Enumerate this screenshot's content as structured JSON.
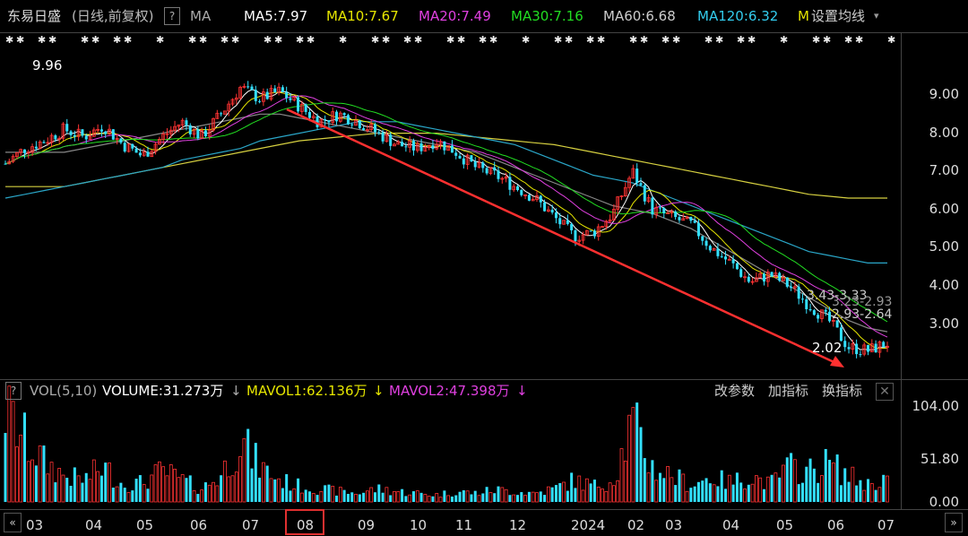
{
  "header": {
    "stock_name": "东易日盛",
    "period": "(日线,前复权)",
    "help_icon": "?",
    "ma_label": "MA",
    "ma_values": [
      {
        "label": "MA5:7.97",
        "color": "#ffffff"
      },
      {
        "label": "MA10:7.67",
        "color": "#e6e600"
      },
      {
        "label": "MA20:7.49",
        "color": "#e040e0"
      },
      {
        "label": "MA30:7.16",
        "color": "#22dd22"
      },
      {
        "label": "MA60:6.68",
        "color": "#cccccc"
      },
      {
        "label": "MA120:6.32",
        "color": "#33ccee"
      },
      {
        "label": "M",
        "color": "#e6e600"
      }
    ],
    "settings_label": "设置均线"
  },
  "volume_panel": {
    "help_icon": "?",
    "title": "VOL(5,10)",
    "volume": "VOLUME:31.273万",
    "mavol1": "MAVOL1:62.136万",
    "mavol2": "MAVOL2:47.398万",
    "buttons": [
      "改参数",
      "加指标",
      "换指标"
    ]
  },
  "colors": {
    "up": "#ff3333",
    "down": "#33e0ff",
    "trend_arrow": "#ff3030",
    "bg": "#000000"
  },
  "chart_data": {
    "type": "candlestick",
    "price_axis": {
      "ticks": [
        9.0,
        8.0,
        7.0,
        6.0,
        5.0,
        4.0,
        3.0
      ],
      "labels": [
        "9.00",
        "8.00",
        "7.00",
        "6.00",
        "5.00",
        "4.00",
        "3.00"
      ]
    },
    "annotations": {
      "high": "9.96",
      "low": "2.02",
      "range1": "3.43-3.33",
      "range2": "3.23-2.93",
      "range3": "2.93-2.64"
    },
    "volume_axis": {
      "labels": [
        "104.00",
        "51.80",
        "0.00"
      ]
    },
    "months": [
      "03",
      "04",
      "05",
      "06",
      "07",
      "08",
      "09",
      "10",
      "11",
      "12",
      "2024",
      "02",
      "03",
      "04",
      "05",
      "06",
      "07"
    ],
    "highlighted_month": "08",
    "series": {
      "close": [
        7.2,
        7.6,
        7.8,
        8.1,
        7.9,
        8.2,
        7.7,
        7.4,
        7.9,
        8.3,
        7.9,
        8.5,
        9.2,
        8.9,
        9.1,
        8.7,
        8.3,
        8.5,
        8.3,
        8.0,
        7.7,
        7.6,
        7.8,
        7.5,
        7.1,
        6.9,
        6.6,
        6.3,
        5.8,
        5.3,
        5.4,
        5.9,
        7.0,
        6.0,
        5.8,
        5.6,
        5.0,
        4.6,
        4.1,
        4.3,
        4.0,
        3.5,
        3.1,
        2.4,
        2.3,
        2.5
      ],
      "ma60": [
        7.5,
        7.5,
        7.5,
        7.5,
        7.6,
        7.7,
        7.8,
        7.9,
        8.0,
        8.1,
        8.2,
        8.3,
        8.4,
        8.5,
        8.5,
        8.4,
        8.3,
        8.2,
        8.1,
        8.0,
        7.9,
        7.8,
        7.7,
        7.6,
        7.5,
        7.3,
        7.1,
        6.9,
        6.7,
        6.5,
        6.3,
        6.1,
        6.0,
        5.9,
        5.7,
        5.5,
        5.2,
        4.9,
        4.6,
        4.3,
        4.0,
        3.7,
        3.4,
        3.1,
        2.9,
        2.8
      ],
      "ma120": [
        6.3,
        6.4,
        6.5,
        6.6,
        6.7,
        6.8,
        6.9,
        7.0,
        7.1,
        7.3,
        7.4,
        7.5,
        7.6,
        7.8,
        7.9,
        8.0,
        8.1,
        8.2,
        8.3,
        8.3,
        8.3,
        8.2,
        8.1,
        8.0,
        7.9,
        7.8,
        7.7,
        7.5,
        7.3,
        7.1,
        6.9,
        6.8,
        6.7,
        6.5,
        6.3,
        6.1,
        5.9,
        5.7,
        5.5,
        5.3,
        5.1,
        4.9,
        4.8,
        4.7,
        4.6,
        4.6
      ],
      "ma250": [
        6.6,
        6.6,
        6.6,
        6.6,
        6.7,
        6.8,
        6.9,
        7.0,
        7.1,
        7.2,
        7.3,
        7.4,
        7.5,
        7.6,
        7.7,
        7.8,
        7.85,
        7.9,
        7.95,
        8.0,
        8.0,
        8.0,
        8.0,
        7.95,
        7.9,
        7.85,
        7.8,
        7.75,
        7.7,
        7.6,
        7.5,
        7.4,
        7.3,
        7.2,
        7.1,
        7.0,
        6.9,
        6.8,
        6.7,
        6.6,
        6.5,
        6.4,
        6.35,
        6.3,
        6.3,
        6.3
      ],
      "volume": [
        104,
        70,
        45,
        30,
        25,
        40,
        20,
        22,
        35,
        25,
        15,
        30,
        70,
        40,
        25,
        18,
        15,
        12,
        10,
        15,
        12,
        10,
        8,
        12,
        10,
        14,
        12,
        10,
        15,
        25,
        18,
        25,
        90,
        40,
        30,
        20,
        28,
        22,
        30,
        20,
        40,
        35,
        45,
        30,
        20,
        28
      ]
    }
  }
}
